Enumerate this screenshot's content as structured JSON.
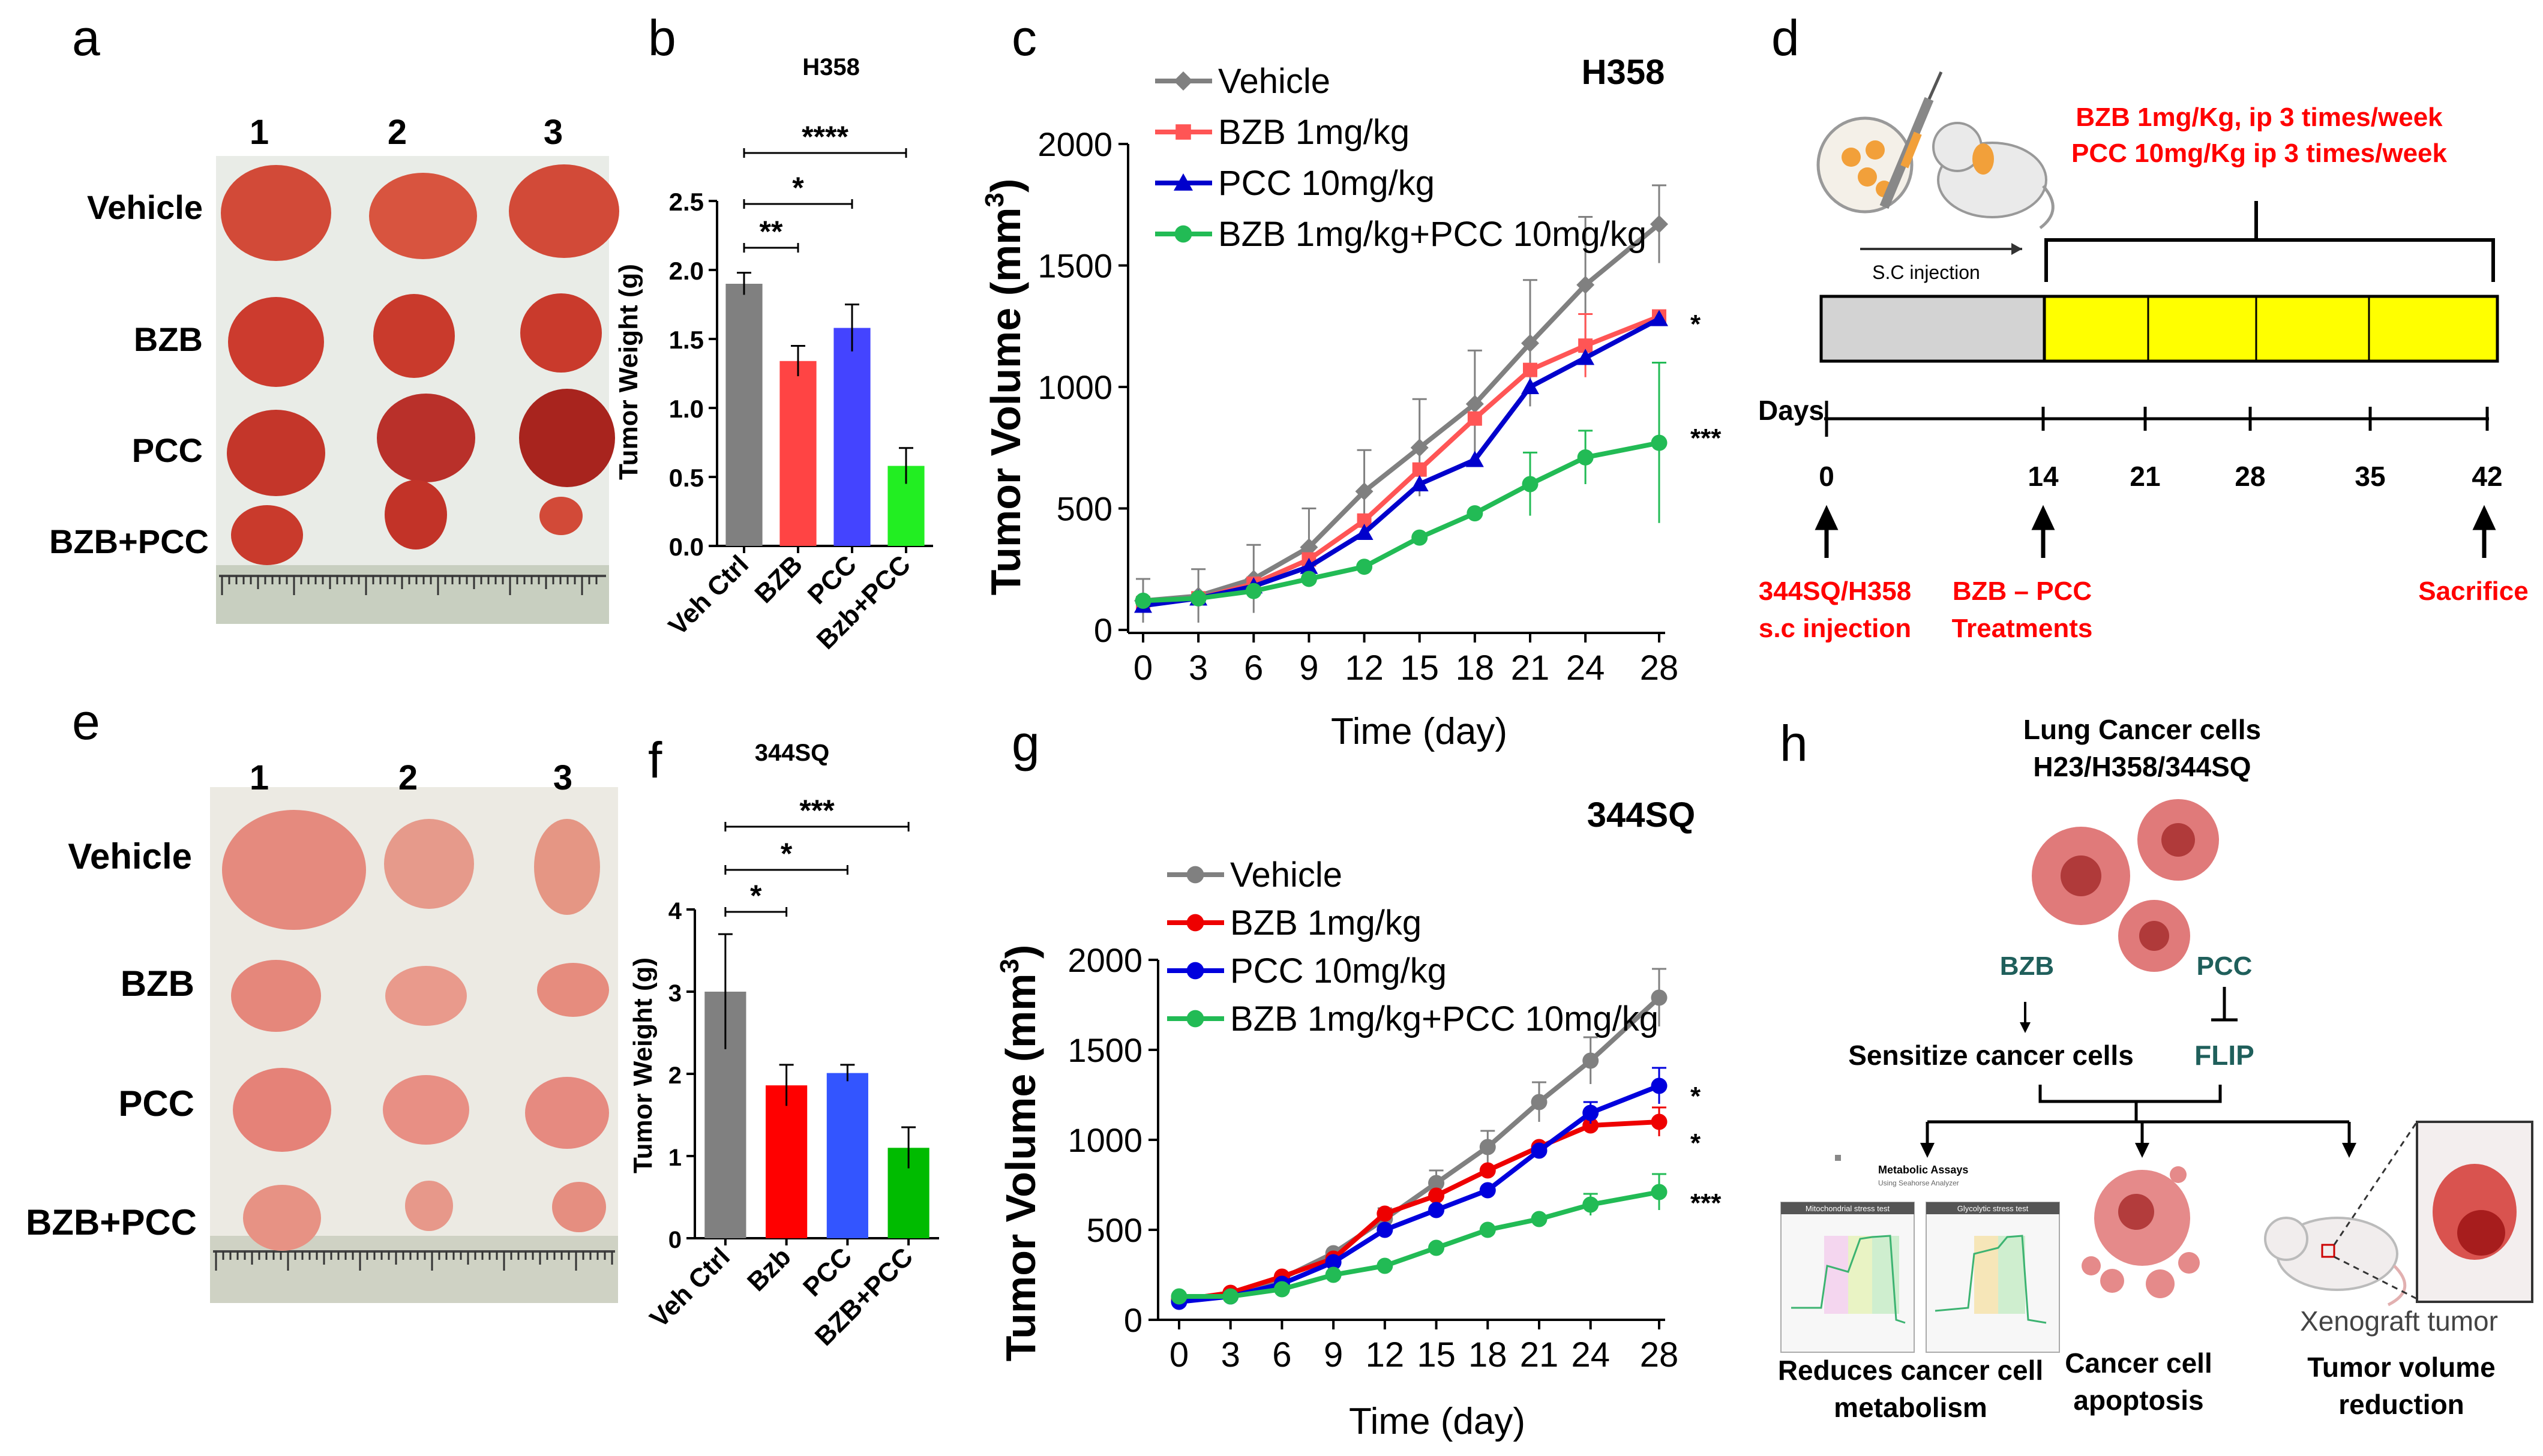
{
  "panel_letters": {
    "a": "a",
    "b": "b",
    "c": "c",
    "d": "d",
    "e": "e",
    "f": "f",
    "g": "g",
    "h": "h"
  },
  "panel_a": {
    "columns": [
      "1",
      "2",
      "3"
    ],
    "rows": [
      "Vehicle",
      "BZB",
      "PCC",
      "BZB+PCC"
    ]
  },
  "panel_e": {
    "columns": [
      "1",
      "2",
      "3"
    ],
    "rows": [
      "Vehicle",
      "BZB",
      "PCC",
      "BZB+PCC"
    ]
  },
  "panel_d": {
    "treatment_line1": "BZB 1mg/Kg, ip 3 times/week",
    "treatment_line2": "PCC 10mg/Kg ip 3 times/week",
    "injection_label": "S.C injection",
    "days_label": "Days",
    "days": [
      "0",
      "14",
      "21",
      "28",
      "35",
      "42"
    ],
    "event1_line1": "344SQ/H358",
    "event1_line2": "s.c injection",
    "event2_line1": "BZB – PCC",
    "event2_line2": "Treatments",
    "event3": "Sacrifice",
    "colors": {
      "pre": "#d3d3d3",
      "treat": "#ffff00",
      "red_text": "#ff0000"
    }
  },
  "panel_h": {
    "title1": "Lung Cancer cells",
    "title2": "H23/H358/344SQ",
    "bzb": "BZB",
    "pcc": "PCC",
    "sensitize": "Sensitize cancer cells",
    "flip": "FLIP",
    "outcome1_line1": "Reduces cancer cell",
    "outcome1_line2": "metabolism",
    "outcome2_line1": "Cancer cell",
    "outcome2_line2": "apoptosis",
    "xeno_label": "Xenograft tumor",
    "outcome3_line1": "Tumor volume",
    "outcome3_line2": "reduction",
    "mini_title": "Metabolic Assays",
    "mini_sub": "Using Seahorse Analyzer",
    "mini_left": "Mitochondrial stress test",
    "mini_right": "Glycolytic stress test",
    "colors": {
      "teal": "#1f5f5b",
      "cell": "#e07a7a",
      "cell_dark": "#b03a3a"
    }
  },
  "chart_data": [
    {
      "id": "b",
      "type": "bar",
      "title": "H358",
      "ylabel": "Tumor Weight (g)",
      "categories": [
        "Veh Ctrl",
        "BZB",
        "PCC",
        "Bzb+PCC"
      ],
      "values": [
        1.9,
        1.34,
        1.58,
        0.58
      ],
      "errors": [
        0.08,
        0.11,
        0.17,
        0.13
      ],
      "colors": [
        "#808080",
        "#ff4444",
        "#4444ff",
        "#22ee22"
      ],
      "ylim": [
        0,
        2.5
      ],
      "yticks": [
        "0.0",
        "0.5",
        "1.0",
        "1.5",
        "2.0",
        "2.5"
      ],
      "significance": [
        "**",
        "*",
        "****"
      ]
    },
    {
      "id": "c",
      "type": "line",
      "title": "H358",
      "xlabel": "Time (day)",
      "ylabel": "Tumor Volume (mm³)",
      "ylabel_main": "Tumor Volume (mm",
      "ylabel_sup": "3",
      "ylabel_end": ")",
      "x": [
        0,
        3,
        6,
        9,
        12,
        15,
        18,
        21,
        24,
        28
      ],
      "xticks": [
        "0",
        "3",
        "6",
        "9",
        "12",
        "15",
        "18",
        "21",
        "24",
        "28"
      ],
      "ylim": [
        0,
        2000
      ],
      "yticks": [
        "0",
        "500",
        "1000",
        "1500",
        "2000"
      ],
      "series": [
        {
          "name": "Vehicle",
          "values": [
            120,
            140,
            210,
            340,
            570,
            750,
            930,
            1180,
            1420,
            1670
          ],
          "errors": [
            90,
            110,
            140,
            160,
            170,
            200,
            220,
            260,
            280,
            160
          ],
          "color": "#808080",
          "marker": "diamond"
        },
        {
          "name": "BZB 1mg/kg",
          "values": [
            110,
            130,
            190,
            290,
            450,
            660,
            870,
            1070,
            1170,
            1290
          ],
          "errors": [
            0,
            0,
            0,
            0,
            0,
            0,
            0,
            0,
            130,
            0
          ],
          "color": "#ff5555",
          "marker": "square"
        },
        {
          "name": "PCC 10mg/kg",
          "values": [
            100,
            130,
            180,
            260,
            400,
            600,
            700,
            1000,
            1120,
            1280
          ],
          "errors": [
            0,
            0,
            0,
            0,
            0,
            0,
            0,
            0,
            0,
            0
          ],
          "color": "#0000cc",
          "marker": "triangle"
        },
        {
          "name": "BZB 1mg/kg+PCC 10mg/kg",
          "values": [
            120,
            130,
            160,
            210,
            260,
            380,
            480,
            600,
            710,
            770
          ],
          "errors": [
            0,
            0,
            0,
            0,
            0,
            0,
            0,
            130,
            110,
            330
          ],
          "color": "#22bb55",
          "marker": "circle"
        }
      ],
      "significance": [
        "*",
        "***"
      ]
    },
    {
      "id": "f",
      "type": "bar",
      "title": "344SQ",
      "ylabel": "Tumor Weight (g)",
      "categories": [
        "Veh Ctrl",
        "Bzb",
        "PCC",
        "BZB+PCC"
      ],
      "values": [
        3.0,
        1.86,
        2.01,
        1.1
      ],
      "errors": [
        0.7,
        0.25,
        0.1,
        0.25
      ],
      "colors": [
        "#808080",
        "#ff0000",
        "#3355ff",
        "#00bb00"
      ],
      "ylim": [
        0,
        4
      ],
      "yticks": [
        "0",
        "1",
        "2",
        "3",
        "4"
      ],
      "significance": [
        "*",
        "*",
        "***"
      ]
    },
    {
      "id": "g",
      "type": "line",
      "title": "344SQ",
      "xlabel": "Time (day)",
      "ylabel": "Tumor Volume (mm³)",
      "ylabel_main": "Tumor Volume (mm",
      "ylabel_sup": "3",
      "ylabel_end": ")",
      "x": [
        0,
        3,
        6,
        9,
        12,
        15,
        18,
        21,
        24,
        28
      ],
      "xticks": [
        "0",
        "3",
        "6",
        "9",
        "12",
        "15",
        "18",
        "21",
        "24",
        "28"
      ],
      "ylim": [
        0,
        2000
      ],
      "yticks": [
        "0",
        "500",
        "1000",
        "1500",
        "2000"
      ],
      "series": [
        {
          "name": "Vehicle",
          "values": [
            120,
            140,
            230,
            370,
            560,
            760,
            960,
            1210,
            1440,
            1790
          ],
          "errors": [
            0,
            0,
            0,
            0,
            60,
            70,
            90,
            110,
            130,
            160
          ],
          "color": "#808080",
          "marker": "circle"
        },
        {
          "name": "BZB 1mg/kg",
          "values": [
            110,
            150,
            240,
            340,
            590,
            690,
            830,
            960,
            1080,
            1100
          ],
          "errors": [
            0,
            0,
            0,
            0,
            0,
            0,
            0,
            0,
            0,
            80
          ],
          "color": "#ee0000",
          "marker": "circle"
        },
        {
          "name": "PCC 10mg/kg",
          "values": [
            100,
            130,
            200,
            320,
            500,
            610,
            720,
            940,
            1150,
            1300
          ],
          "errors": [
            0,
            0,
            0,
            0,
            0,
            0,
            0,
            0,
            60,
            100
          ],
          "color": "#0000dd",
          "marker": "circle"
        },
        {
          "name": "BZB 1mg/kg+PCC 10mg/kg",
          "values": [
            130,
            130,
            170,
            250,
            300,
            400,
            500,
            560,
            640,
            710
          ],
          "errors": [
            0,
            0,
            0,
            0,
            0,
            0,
            0,
            0,
            60,
            100
          ],
          "color": "#22bb55",
          "marker": "circle"
        }
      ],
      "significance": [
        "*",
        "*",
        "***"
      ]
    }
  ]
}
